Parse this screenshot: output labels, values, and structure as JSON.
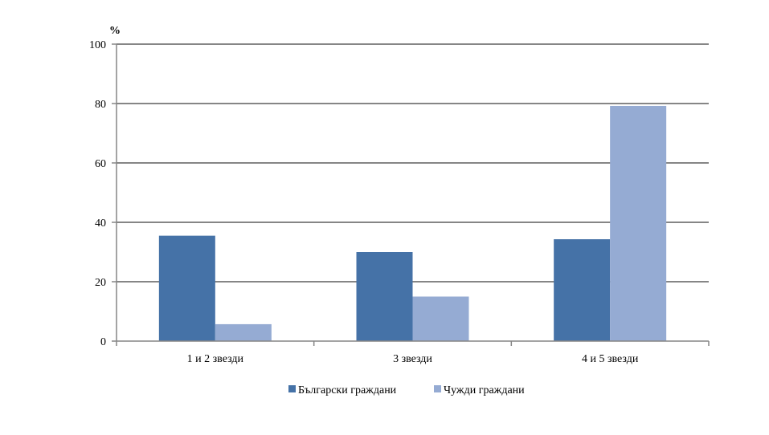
{
  "chart_data": {
    "type": "bar",
    "unit_label": "%",
    "categories": [
      "1 и 2 звезди",
      "3 звезди",
      "4 и 5 звезди"
    ],
    "series": [
      {
        "name": "Български граждани",
        "color": "#4572A7",
        "values": [
          35.5,
          30,
          34.3
        ]
      },
      {
        "name": "Чужди граждани",
        "color": "#95ABD3",
        "values": [
          5.7,
          15,
          79.2
        ]
      }
    ],
    "ylim": [
      0,
      100
    ],
    "yticks": [
      0,
      20,
      40,
      60,
      80,
      100
    ],
    "grid": true,
    "legend_position": "bottom"
  }
}
